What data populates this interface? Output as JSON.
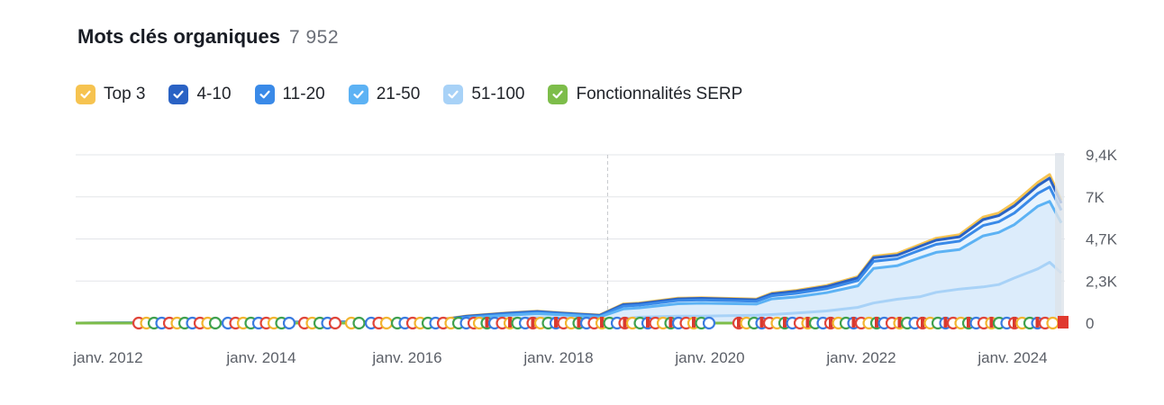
{
  "header": {
    "title": "Mots clés organiques",
    "count": "7 952"
  },
  "legend": [
    {
      "label": "Top 3",
      "color": "#f6c350",
      "icon": "check-icon"
    },
    {
      "label": "4-10",
      "color": "#2a62c4",
      "icon": "check-icon"
    },
    {
      "label": "11-20",
      "color": "#3a8ae8",
      "icon": "check-icon"
    },
    {
      "label": "21-50",
      "color": "#5cb2f4",
      "icon": "check-icon"
    },
    {
      "label": "51-100",
      "color": "#a8d2f7",
      "icon": "check-icon"
    },
    {
      "label": "Fonctionnalités SERP",
      "color": "#7dbd4a",
      "icon": "check-icon"
    }
  ],
  "chart_data": {
    "type": "area",
    "x_ticks": [
      "janv. 2012",
      "janv. 2014",
      "janv. 2016",
      "janv. 2018",
      "janv. 2020",
      "janv. 2022",
      "janv. 2024"
    ],
    "y_ticks": [
      "9,4K",
      "7K",
      "4,7K",
      "2,3K",
      "0"
    ],
    "ylim": [
      0,
      9400
    ],
    "xlim": [
      2012.0,
      2024.6
    ],
    "stack_order": [
      "51-100",
      "21-50",
      "11-20",
      "4-10",
      "Top 3"
    ],
    "x": [
      2012.0,
      2016.5,
      2017.0,
      2017.5,
      2017.9,
      2018.2,
      2018.7,
      2019.0,
      2019.2,
      2019.7,
      2020.0,
      2020.7,
      2020.9,
      2021.2,
      2021.6,
      2022.0,
      2022.2,
      2022.5,
      2022.8,
      2023.0,
      2023.3,
      2023.6,
      2023.8,
      2024.0,
      2024.3,
      2024.45,
      2024.6
    ],
    "series": [
      {
        "name": "51-100",
        "color": "#a8d2f7",
        "values": [
          0,
          0,
          130,
          210,
          300,
          280,
          200,
          230,
          330,
          390,
          390,
          440,
          480,
          560,
          680,
          880,
          1120,
          1330,
          1480,
          1720,
          1900,
          2020,
          2150,
          2520,
          3030,
          3400,
          2800
        ]
      },
      {
        "name": "21-50",
        "color": "#5cb2f4",
        "values": [
          0,
          40,
          150,
          220,
          230,
          180,
          140,
          560,
          520,
          690,
          720,
          620,
          870,
          900,
          1020,
          1200,
          1930,
          1870,
          2180,
          2230,
          2210,
          2850,
          2910,
          2980,
          3500,
          3400,
          2800
        ]
      },
      {
        "name": "11-20",
        "color": "#3a8ae8",
        "values": [
          0,
          30,
          60,
          70,
          70,
          60,
          50,
          160,
          150,
          180,
          180,
          160,
          180,
          200,
          220,
          300,
          400,
          390,
          420,
          450,
          470,
          580,
          600,
          650,
          720,
          800,
          700
        ]
      },
      {
        "name": "4-10",
        "color": "#2a62c4",
        "values": [
          0,
          20,
          40,
          50,
          50,
          40,
          40,
          80,
          80,
          90,
          90,
          80,
          100,
          110,
          120,
          150,
          200,
          200,
          220,
          230,
          240,
          330,
          340,
          400,
          430,
          500,
          400
        ]
      },
      {
        "name": "Top 3",
        "color": "#f6c350",
        "values": [
          0,
          10,
          20,
          20,
          20,
          20,
          20,
          40,
          40,
          40,
          40,
          40,
          50,
          50,
          60,
          70,
          80,
          90,
          100,
          110,
          120,
          140,
          150,
          170,
          180,
          200,
          150
        ]
      }
    ],
    "annotation_x": 2018.8,
    "grid": true,
    "legend_position": "top-left"
  }
}
